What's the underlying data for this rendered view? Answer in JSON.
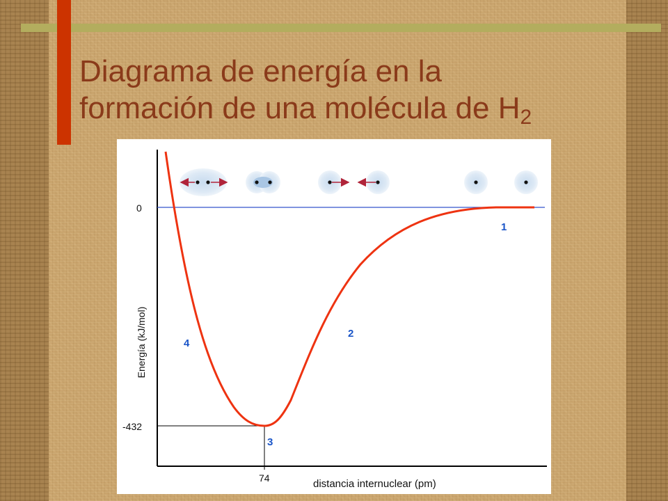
{
  "slide": {
    "title_line1": "Diagrama de energía en la",
    "title_line2": "formación de una molécula de H",
    "title_subscript": "2"
  },
  "diagram": {
    "y_axis_label": "Energía (kJ/mol)",
    "x_axis_label": "distancia internuclear (pm)",
    "y_tick_zero": "0",
    "y_tick_min": "-432",
    "x_tick_min": "74",
    "curve_color": "#ee3311",
    "zero_line_color": "#3355cc",
    "label_color": "#1a55c8",
    "points": [
      {
        "label": "1"
      },
      {
        "label": "2"
      },
      {
        "label": "3"
      },
      {
        "label": "4"
      }
    ],
    "atom_stages": [
      "repulsion",
      "bond",
      "attraction",
      "separated"
    ]
  }
}
